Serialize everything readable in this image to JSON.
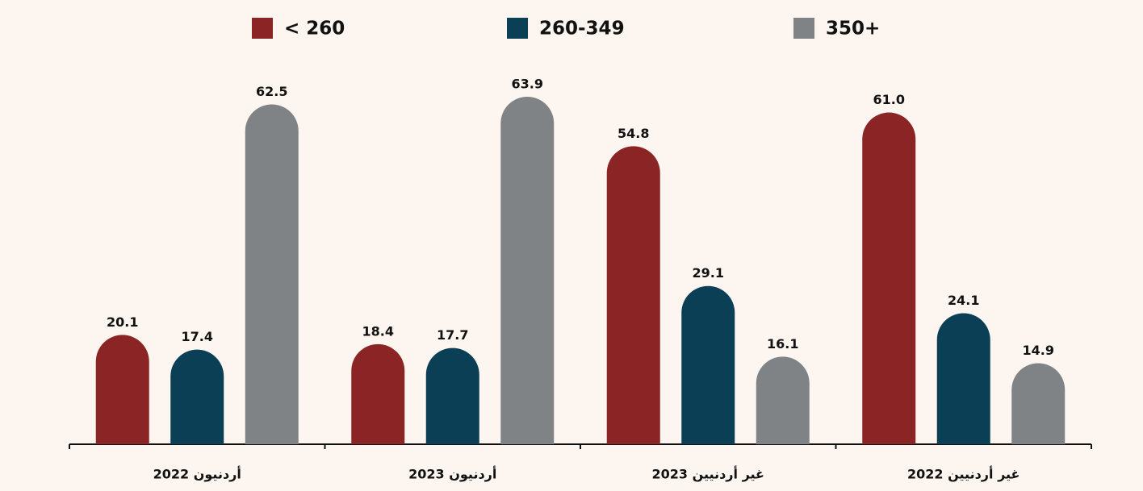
{
  "chart_data": {
    "type": "bar",
    "categories": [
      "أردنيون 2022",
      "أردنيون 2023",
      "غير أردنيين 2023",
      "غير أردنيين 2022"
    ],
    "series": [
      {
        "name": "< 260",
        "color": "#8b2424",
        "values": [
          20.1,
          18.4,
          54.8,
          61.0
        ],
        "value_labels": [
          "20.1",
          "18.4",
          "54.8",
          "61.0"
        ]
      },
      {
        "name": "260-349",
        "color": "#0b3f56",
        "values": [
          17.4,
          17.7,
          29.1,
          24.1
        ],
        "value_labels": [
          "17.4",
          "17.7",
          "29.1",
          "24.1"
        ]
      },
      {
        "name": "350+",
        "color": "#808385",
        "values": [
          62.5,
          63.9,
          16.1,
          14.9
        ],
        "value_labels": [
          "62.5",
          "63.9",
          "16.1",
          "14.9"
        ]
      }
    ],
    "legend": "top"
  }
}
